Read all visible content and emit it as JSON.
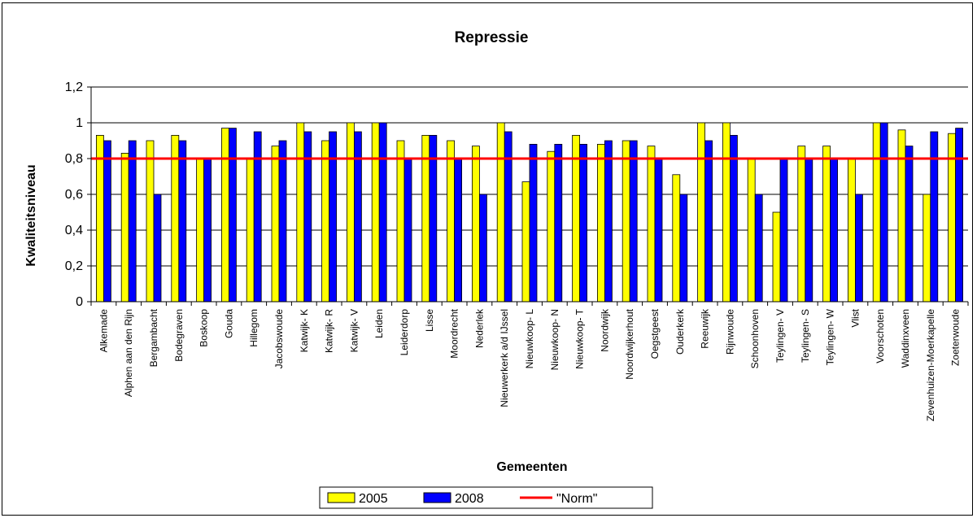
{
  "chart_data": {
    "type": "bar",
    "title": "Repressie",
    "xlabel": "Gemeenten",
    "ylabel": "Kwaliteitsniveau",
    "ylim": [
      0,
      1.2
    ],
    "yticks": [
      "0",
      "0,2",
      "0,4",
      "0,6",
      "0,8",
      "1",
      "1,2"
    ],
    "ytick_values": [
      0,
      0.2,
      0.4,
      0.6,
      0.8,
      1.0,
      1.2
    ],
    "grid": true,
    "legend_position": "bottom",
    "categories": [
      "Alkemade",
      "Alphen aan den Rijn",
      "Bergambacht",
      "Bodegraven",
      "Boskoop",
      "Gouda",
      "Hillegom",
      "Jacobswoude",
      "Katwijk- K",
      "Katwijk- R",
      "Katwijk- V",
      "Leiden",
      "Leiderdorp",
      "Lisse",
      "Moordrecht",
      "Nederlek",
      "Nieuwerkerk a/d IJssel",
      "Nieuwkoop- L",
      "Nieuwkoop- N",
      "Nieuwkoop- T",
      "Noordwijk",
      "Noordwijkerhout",
      "Oegstgeest",
      "Ouderkerk",
      "Reeuwijk",
      "Rijnwoude",
      "Schoonhoven",
      "Teylingen- V",
      "Teylingen- S",
      "Teylingen- W",
      "Vlist",
      "Voorschoten",
      "Waddinxveen",
      "Zevenhuizen-Moerkapelle",
      "Zoeterwoude"
    ],
    "series": [
      {
        "name": "2005",
        "color": "#ffff00",
        "values": [
          0.93,
          0.83,
          0.9,
          0.93,
          0.8,
          0.97,
          0.8,
          0.87,
          1.0,
          0.9,
          1.0,
          1.0,
          0.9,
          0.93,
          0.9,
          0.87,
          1.0,
          0.67,
          0.84,
          0.93,
          0.88,
          0.9,
          0.87,
          0.71,
          1.0,
          1.0,
          0.8,
          0.5,
          0.87,
          0.87,
          0.8,
          1.0,
          0.96,
          0.6,
          0.94
        ]
      },
      {
        "name": "2008",
        "color": "#0000ff",
        "values": [
          0.9,
          0.9,
          0.6,
          0.9,
          0.8,
          0.97,
          0.95,
          0.9,
          0.95,
          0.95,
          0.95,
          1.0,
          0.8,
          0.93,
          0.8,
          0.6,
          0.95,
          0.88,
          0.88,
          0.88,
          0.9,
          0.9,
          0.8,
          0.6,
          0.9,
          0.93,
          0.6,
          0.8,
          0.8,
          0.8,
          0.6,
          1.0,
          0.87,
          0.95,
          0.97
        ]
      }
    ],
    "norm": {
      "name": "\"Norm\"",
      "value": 0.8,
      "color": "#ff0000"
    }
  }
}
